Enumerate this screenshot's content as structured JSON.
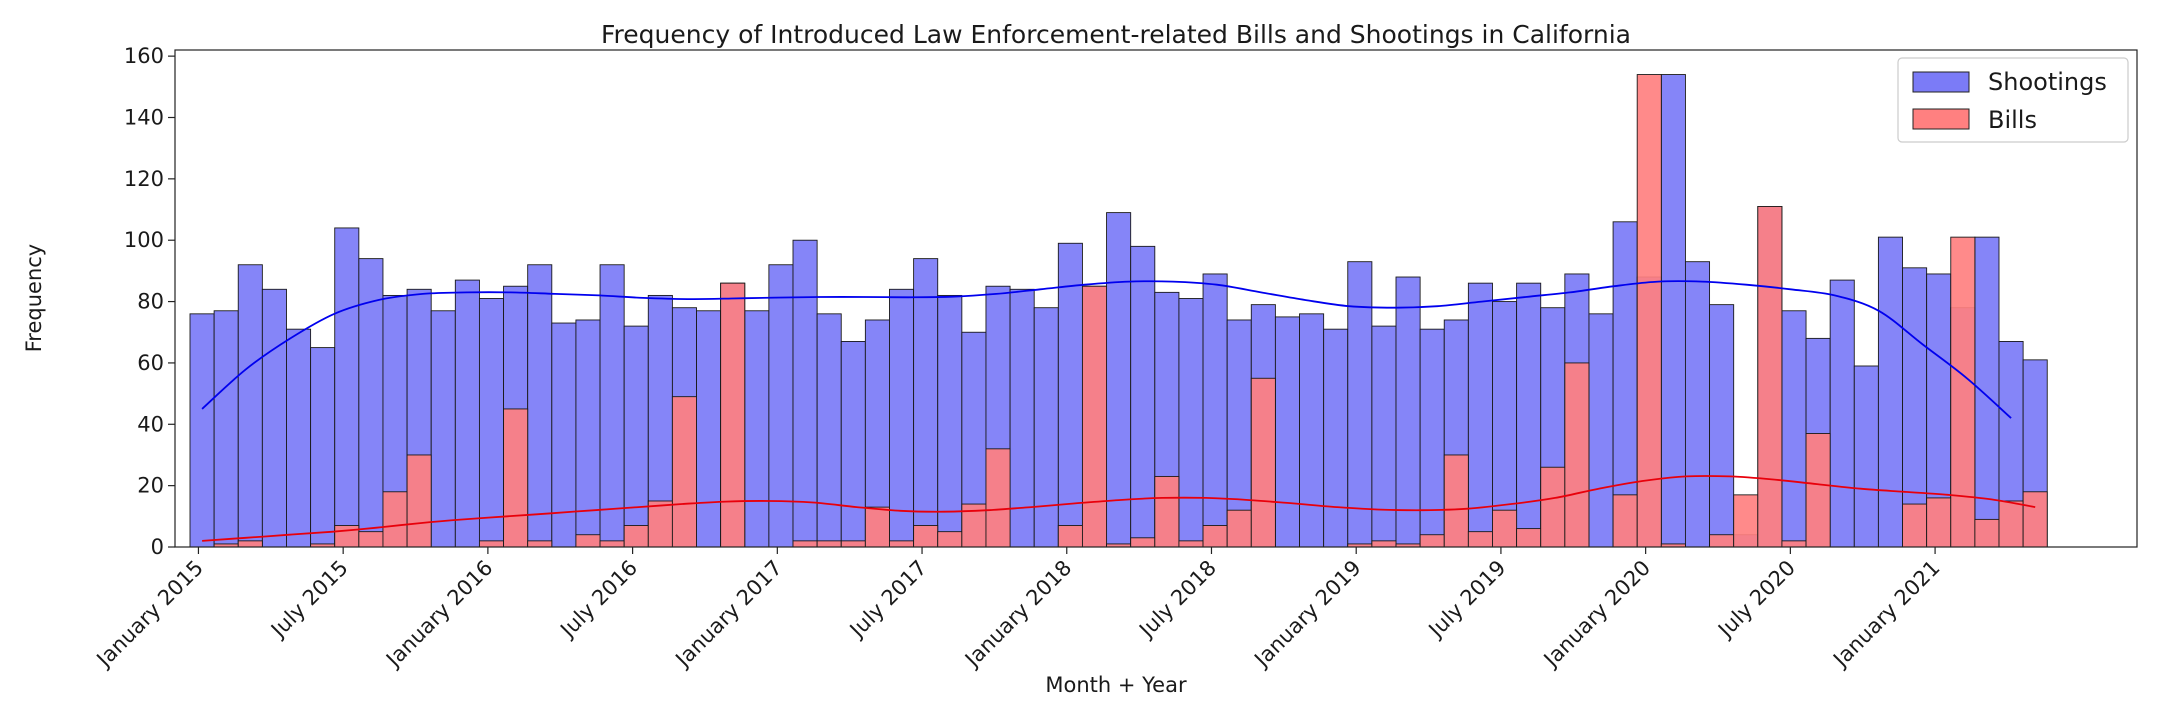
{
  "chart_data": {
    "type": "bar",
    "title": "Frequency of Introduced Law Enforcement-related Bills and Shootings in California",
    "xlabel": "Month + Year",
    "ylabel": "Frequency",
    "ylim": [
      0,
      162
    ],
    "yticks": [
      0,
      20,
      40,
      60,
      80,
      100,
      120,
      140,
      160
    ],
    "grid": false,
    "legend_position": "top-right",
    "x_start": "2015-01",
    "xticks": [
      "January 2015",
      "July 2015",
      "January 2016",
      "July 2016",
      "January 2017",
      "July 2017",
      "January 2018",
      "July 2018",
      "January 2019",
      "July 2019",
      "January 2020",
      "July 2020",
      "January 2021"
    ],
    "series": [
      {
        "name": "Shootings",
        "color": "#7b7bf7",
        "line_color": "#0000ee",
        "values": [
          76,
          77,
          92,
          84,
          71,
          65,
          104,
          94,
          82,
          84,
          77,
          87,
          81,
          85,
          92,
          73,
          74,
          92,
          72,
          82,
          78,
          77,
          86,
          77,
          92,
          100,
          76,
          67,
          74,
          84,
          94,
          82,
          70,
          85,
          84,
          78,
          99,
          85,
          109,
          98,
          83,
          81,
          89,
          74,
          79,
          75,
          76,
          71,
          93,
          72,
          88,
          71,
          74,
          86,
          80,
          86,
          78,
          89,
          76,
          106,
          88,
          154,
          93,
          79,
          4,
          111,
          77,
          68,
          87,
          59,
          101,
          91,
          89,
          78,
          101,
          67,
          61,
          0
        ],
        "trend": [
          45,
          58,
          68,
          76,
          80.5,
          82.5,
          83,
          83,
          82.5,
          82,
          81.2,
          80.8,
          81,
          81.3,
          81.5,
          81.5,
          81.4,
          81.6,
          82.5,
          84,
          85.5,
          86.5,
          86.5,
          85.5,
          83,
          80.5,
          78.5,
          78,
          78.5,
          80,
          81.5,
          83,
          85,
          86.5,
          86.5,
          85.5,
          84,
          82,
          77,
          66,
          55,
          42
        ]
      },
      {
        "name": "Bills",
        "color": "#ff8080",
        "line_color": "#e8000b",
        "values": [
          0,
          1,
          2,
          0,
          0,
          1,
          7,
          5,
          18,
          30,
          0,
          0,
          2,
          45,
          2,
          0,
          4,
          2,
          7,
          15,
          49,
          0,
          86,
          0,
          0,
          2,
          2,
          2,
          13,
          2,
          7,
          5,
          14,
          32,
          0,
          0,
          7,
          85,
          1,
          3,
          23,
          2,
          7,
          12,
          55,
          0,
          0,
          0,
          1,
          2,
          1,
          4,
          30,
          5,
          12,
          6,
          26,
          60,
          0,
          17,
          154,
          1,
          0,
          4,
          17,
          111,
          2,
          37,
          0,
          0,
          0,
          14,
          16,
          101,
          9,
          15,
          18,
          0
        ],
        "trend": [
          2,
          3,
          4,
          5,
          6.3,
          7.8,
          9,
          10,
          11,
          12,
          13,
          14,
          14.8,
          15,
          14.5,
          13,
          11.8,
          11.5,
          12,
          13,
          14.2,
          15.3,
          16,
          16,
          15.3,
          14.2,
          13,
          12.2,
          12,
          12.5,
          14,
          16,
          19,
          21.5,
          23,
          23,
          22,
          20.5,
          19,
          18,
          17,
          15.5,
          13
        ]
      }
    ]
  }
}
